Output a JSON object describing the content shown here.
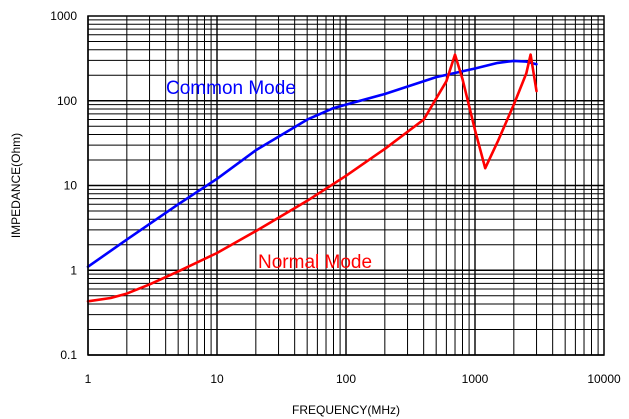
{
  "chart_data": {
    "type": "line",
    "title": "",
    "xlabel": "FREQUENCY(MHz)",
    "ylabel": "IMPEDANCE(Ohm)",
    "x_scale": "log",
    "y_scale": "log",
    "xlim": [
      1,
      10000
    ],
    "ylim": [
      0.1,
      1000
    ],
    "grid": true,
    "x_ticks": [
      "1",
      "10",
      "100",
      "1000",
      "10000"
    ],
    "y_ticks": [
      "0.1",
      "1",
      "10",
      "100",
      "1000"
    ],
    "series": [
      {
        "name": "Common Mode",
        "color": "#0000ff",
        "x": [
          1,
          2,
          5,
          10,
          20,
          50,
          80,
          100,
          200,
          500,
          1000,
          1500,
          2000,
          2500,
          3000
        ],
        "y": [
          1.1,
          2.3,
          6,
          12,
          26,
          60,
          82,
          90,
          120,
          190,
          240,
          280,
          295,
          290,
          270
        ]
      },
      {
        "name": "Normal Mode",
        "color": "#ff0000",
        "x": [
          1,
          1.5,
          2,
          3,
          5,
          10,
          20,
          50,
          100,
          200,
          400,
          600,
          700,
          800,
          1000,
          1200,
          1500,
          2000,
          2500,
          2700,
          3000
        ],
        "y": [
          0.43,
          0.47,
          0.53,
          0.68,
          0.97,
          1.6,
          2.9,
          6.6,
          13,
          27,
          60,
          170,
          350,
          180,
          45,
          16,
          33,
          90,
          210,
          350,
          130
        ]
      }
    ]
  }
}
